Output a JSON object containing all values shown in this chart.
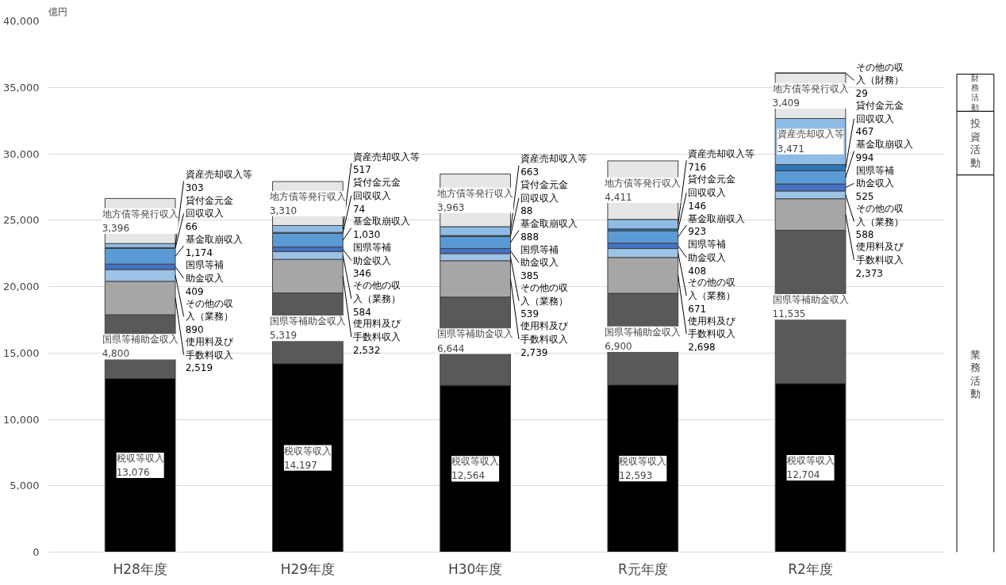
{
  "chart_data": {
    "type": "bar",
    "stacked": true,
    "ylabel": "億円",
    "categories": [
      "H28年度",
      "H29年度",
      "H30年度",
      "R元年度",
      "R2年度"
    ],
    "series": [
      {
        "name": "税収等収入",
        "color": "#000000",
        "values": [
          13076,
          14197,
          12564,
          12593,
          12704
        ],
        "value_labels": [
          "13,076",
          "14,197",
          "12,564",
          "12,593",
          "12,704"
        ]
      },
      {
        "name": "国県等補助金収入",
        "color": "#595959",
        "values": [
          4800,
          5319,
          6644,
          6900,
          11535
        ],
        "value_labels": [
          "4,800",
          "5,319",
          "6,644",
          "6,900",
          "11,535"
        ]
      },
      {
        "name": "使用料及び手数料収入",
        "color": "#a6a6a6",
        "values": [
          2519,
          2532,
          2739,
          2698,
          2373
        ],
        "value_labels": [
          "2,519",
          "2,532",
          "2,739",
          "2,698",
          "2,373"
        ]
      },
      {
        "name": "その他の収入（業務）",
        "color": "#9dc3e6",
        "values": [
          890,
          584,
          539,
          671,
          588
        ],
        "value_labels": [
          "890",
          "584",
          "539",
          "671",
          "588"
        ]
      },
      {
        "name": "国県等補助金収入",
        "color": "#4472c4",
        "values": [
          409,
          346,
          385,
          408,
          525
        ],
        "value_labels": [
          "409",
          "346",
          "385",
          "408",
          "525"
        ]
      },
      {
        "name": "基金取崩収入",
        "color": "#5b9bd5",
        "values": [
          1174,
          1030,
          888,
          923,
          994
        ],
        "value_labels": [
          "1,174",
          "1,030",
          "888",
          "923",
          "994"
        ]
      },
      {
        "name": "貸付金元金回収収入",
        "color": "#2e75b6",
        "values": [
          66,
          74,
          88,
          146,
          467
        ],
        "value_labels": [
          "66",
          "74",
          "88",
          "146",
          "467"
        ]
      },
      {
        "name": "資産売却収入等",
        "color": "#8fbce6",
        "values": [
          303,
          517,
          663,
          716,
          3471
        ],
        "value_labels": [
          "303",
          "517",
          "663",
          "716",
          "3,471"
        ]
      },
      {
        "name": "地方債等発行収入",
        "color": "#e7e6e6",
        "values": [
          3396,
          3310,
          3963,
          4411,
          3409
        ],
        "value_labels": [
          "3,396",
          "3,310",
          "3,963",
          "4,411",
          "3,409"
        ]
      },
      {
        "name": "その他の収入（財務）",
        "color": "#f4b183",
        "values": [
          null,
          null,
          null,
          null,
          29
        ],
        "value_labels": [
          null,
          null,
          null,
          null,
          "29"
        ]
      }
    ],
    "ylim": [
      0,
      40000
    ],
    "yticks": [
      0,
      {
        "value": 5000,
        "label": "5,000"
      },
      {
        "value": 10000,
        "label": "10,000"
      },
      {
        "value": 15000,
        "label": "15,000"
      },
      {
        "value": 20000,
        "label": "20,000"
      },
      {
        "value": 25000,
        "label": "25,000"
      },
      {
        "value": 30000,
        "label": "30,000"
      },
      {
        "value": 35000,
        "label": "35,000"
      },
      {
        "value": 40000,
        "label": "40,000"
      }
    ],
    "grid": "y",
    "annotations": [
      "財務活動",
      "投資活動",
      "業務活動"
    ]
  }
}
